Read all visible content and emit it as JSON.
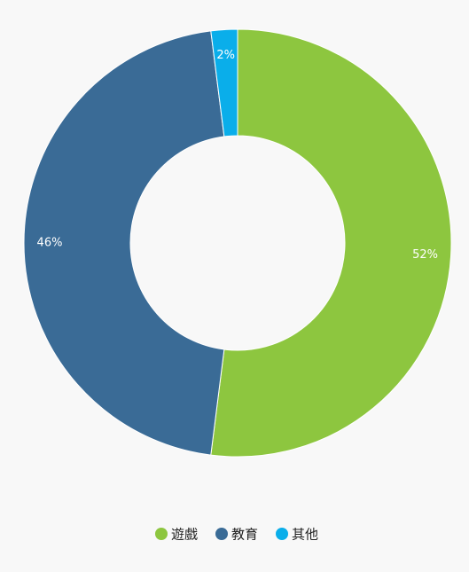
{
  "chart_data": {
    "type": "donut",
    "categories": [
      "遊戲",
      "教育",
      "其他"
    ],
    "values": [
      52,
      46,
      2
    ],
    "value_labels": [
      "52%",
      "46%",
      "2%"
    ],
    "colors": [
      "#8dc63f",
      "#3a6b96",
      "#0aaeea"
    ],
    "legend": "bottom"
  }
}
